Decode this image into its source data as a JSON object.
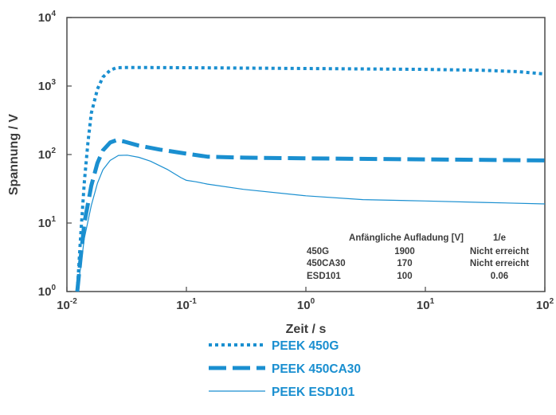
{
  "chart_data": {
    "type": "line",
    "xscale": "log",
    "yscale": "log",
    "xlabel": "Zeit / s",
    "ylabel": "Spannung / V",
    "xlim": [
      0.01,
      100
    ],
    "ylim": [
      1,
      10000
    ],
    "x_ticks": [
      {
        "base": "10",
        "exp": "-2",
        "value": 0.01
      },
      {
        "base": "10",
        "exp": "-1",
        "value": 0.1
      },
      {
        "base": "10",
        "exp": "0",
        "value": 1
      },
      {
        "base": "10",
        "exp": "1",
        "value": 10
      },
      {
        "base": "10",
        "exp": "2",
        "value": 100
      }
    ],
    "y_ticks": [
      {
        "base": "10",
        "exp": "0",
        "value": 1
      },
      {
        "base": "10",
        "exp": "1",
        "value": 10
      },
      {
        "base": "10",
        "exp": "2",
        "value": 100
      },
      {
        "base": "10",
        "exp": "3",
        "value": 1000
      },
      {
        "base": "10",
        "exp": "4",
        "value": 10000
      }
    ],
    "color": "#1a8fd0",
    "series": [
      {
        "name": "PEEK 450G",
        "style": "dotted",
        "points": [
          [
            0.0122,
            1.0
          ],
          [
            0.013,
            6
          ],
          [
            0.014,
            40
          ],
          [
            0.015,
            150
          ],
          [
            0.016,
            400
          ],
          [
            0.018,
            900
          ],
          [
            0.02,
            1350
          ],
          [
            0.023,
            1700
          ],
          [
            0.026,
            1850
          ],
          [
            0.03,
            1860
          ],
          [
            0.05,
            1860
          ],
          [
            0.1,
            1850
          ],
          [
            1,
            1800
          ],
          [
            10,
            1750
          ],
          [
            30,
            1700
          ],
          [
            60,
            1620
          ],
          [
            100,
            1500
          ]
        ]
      },
      {
        "name": "PEEK 450CA30",
        "style": "dashed",
        "points": [
          [
            0.0122,
            1.0
          ],
          [
            0.013,
            3
          ],
          [
            0.014,
            10
          ],
          [
            0.016,
            35
          ],
          [
            0.018,
            75
          ],
          [
            0.02,
            115
          ],
          [
            0.023,
            150
          ],
          [
            0.026,
            162
          ],
          [
            0.03,
            155
          ],
          [
            0.04,
            135
          ],
          [
            0.06,
            118
          ],
          [
            0.1,
            103
          ],
          [
            0.15,
            93
          ],
          [
            0.3,
            90
          ],
          [
            1,
            88
          ],
          [
            10,
            85
          ],
          [
            100,
            82
          ]
        ]
      },
      {
        "name": "PEEK ESD101",
        "style": "solid",
        "points": [
          [
            0.0122,
            1.0
          ],
          [
            0.013,
            2.2
          ],
          [
            0.014,
            6
          ],
          [
            0.016,
            18
          ],
          [
            0.018,
            38
          ],
          [
            0.02,
            60
          ],
          [
            0.023,
            82
          ],
          [
            0.027,
            97
          ],
          [
            0.032,
            98
          ],
          [
            0.04,
            91
          ],
          [
            0.05,
            80
          ],
          [
            0.07,
            60
          ],
          [
            0.09,
            46
          ],
          [
            0.1,
            42
          ],
          [
            0.12,
            40
          ],
          [
            0.15,
            37
          ],
          [
            0.3,
            31
          ],
          [
            1,
            25
          ],
          [
            3,
            22
          ],
          [
            10,
            21
          ],
          [
            30,
            20
          ],
          [
            100,
            19
          ]
        ]
      }
    ],
    "table": {
      "header": [
        "",
        "Anfängliche Aufladung [V]",
        "1/e"
      ],
      "rows": [
        [
          "450G",
          "1900",
          "Nicht erreicht"
        ],
        [
          "450CA30",
          "170",
          "Nicht erreicht"
        ],
        [
          "ESD101",
          "100",
          "0.06"
        ]
      ]
    },
    "legend": {
      "placement": "below",
      "items": [
        "PEEK 450G",
        "PEEK 450CA30",
        "PEEK ESD101"
      ]
    }
  }
}
